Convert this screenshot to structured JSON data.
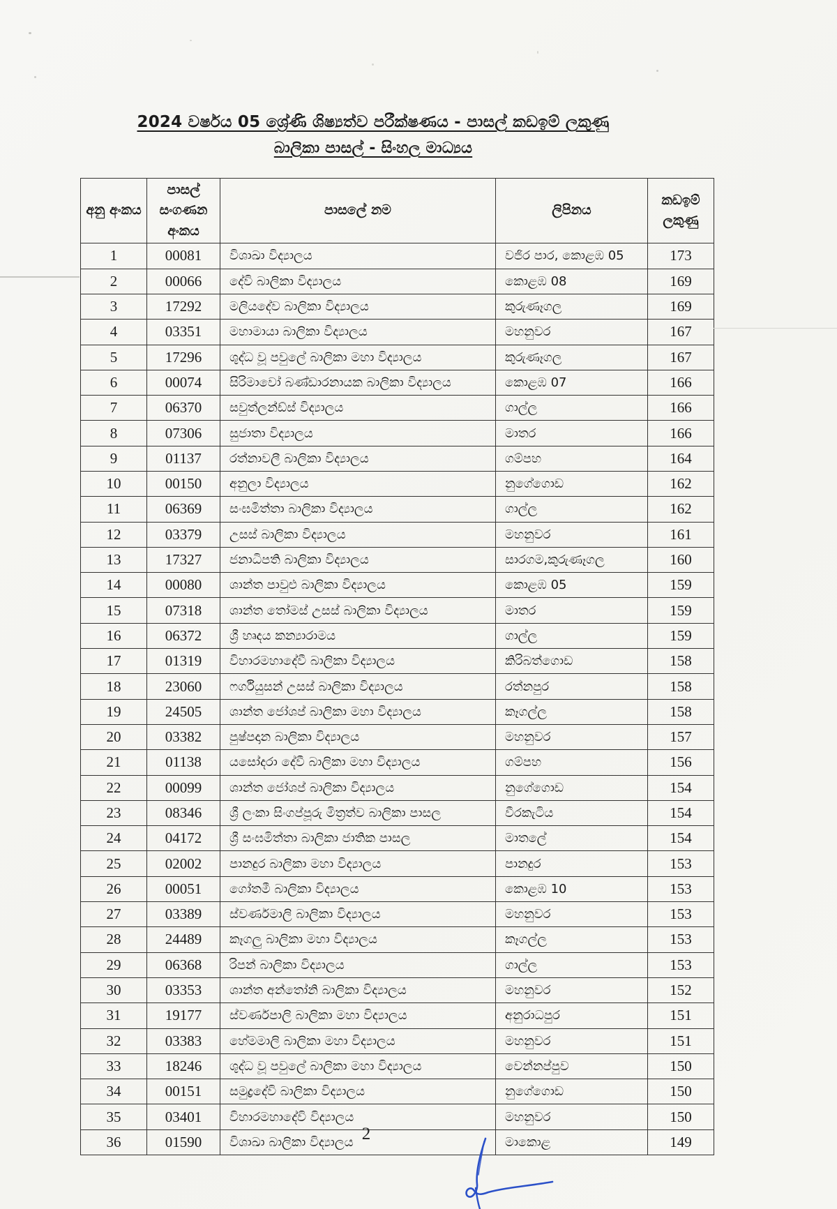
{
  "page": {
    "title_line1": "2024 වර්ෂය 05 ශ්‍රේණි ශිෂ්‍යත්ව පරීක්ෂණය - පාසල් කඩඉම් ලකුණු",
    "title_line2": "බාලිකා පාසල් - සිංහල මාධ්‍යය",
    "page_number": "2",
    "signature_icon": "handwritten-signature-blue-ink"
  },
  "table": {
    "headers": {
      "serial": "අනු අංකය",
      "census": "පාසල් සංගණන අංකය",
      "school": "පාසලේ නම",
      "address": "ලිපිනය",
      "marks": "කඩඉම් ලකුණු"
    },
    "rows": [
      [
        "1",
        "00081",
        "විශාඛා විද්‍යාලය",
        "වජිර පාර, කොළඹ 05",
        "173"
      ],
      [
        "2",
        "00066",
        "දේවි බාලිකා විද්‍යාලය",
        "කොළඹ 08",
        "169"
      ],
      [
        "3",
        "17292",
        "මලියදේව බාලිකා විද්‍යාලය",
        "කුරුණෑගල",
        "169"
      ],
      [
        "4",
        "03351",
        "මහාමායා බාලිකා විද්‍යාලය",
        "මහනුවර",
        "167"
      ],
      [
        "5",
        "17296",
        "ශුද්ධ වූ පවුලේ බාලිකා මහා විද්‍යාලය",
        "කුරුණෑගල",
        "167"
      ],
      [
        "6",
        "00074",
        "සිරිමාවෝ බණ්ඩාරනායක බාලිකා විද්‍යාලය",
        "කොළඹ 07",
        "166"
      ],
      [
        "7",
        "06370",
        "සවුත්ලන්ඩ්ස් විද්‍යාලය",
        "ගාල්ල",
        "166"
      ],
      [
        "8",
        "07306",
        "සුජාතා විද්‍යාලය",
        "මාතර",
        "166"
      ],
      [
        "9",
        "01137",
        "රත්නාවලී බාලිකා විද්‍යාලය",
        "ගම්පහ",
        "164"
      ],
      [
        "10",
        "00150",
        "අනුලා විද්‍යාලය",
        "නුගේගොඩ",
        "162"
      ],
      [
        "11",
        "06369",
        "සංඝමිත්තා බාලිකා විද්‍යාලය",
        "ගාල්ල",
        "162"
      ],
      [
        "12",
        "03379",
        "උසස් බාලිකා විද්‍යාලය",
        "මහනුවර",
        "161"
      ],
      [
        "13",
        "17327",
        "ජනාධිපති බාලිකා විද්‍යාලය",
        "සාරගම,කුරුණෑගල",
        "160"
      ],
      [
        "14",
        "00080",
        "ශාන්ත පාවුළු බාලිකා විද්‍යාලය",
        "කොළඹ 05",
        "159"
      ],
      [
        "15",
        "07318",
        "ශාන්ත තෝමස් උසස් බාලිකා විද්‍යාලය",
        "මාතර",
        "159"
      ],
      [
        "16",
        "06372",
        "ශ්‍රී හෘදය කන්‍යාරාමය",
        "ගාල්ල",
        "159"
      ],
      [
        "17",
        "01319",
        "විහාරමහාදේවී බාලිකා විද්‍යාලය",
        "කිරිබත්ගොඩ",
        "158"
      ],
      [
        "18",
        "23060",
        "ෆර්ගියුසන් උසස් බාලිකා විද්‍යාලය",
        "රත්නපුර",
        "158"
      ],
      [
        "19",
        "24505",
        "ශාන්ත ජෝශප් බාලිකා මහා විද්‍යාලය",
        "කෑගල්ල",
        "158"
      ],
      [
        "20",
        "03382",
        "පුෂ්පදාන බාලිකා විද්‍යාලය",
        "මහනුවර",
        "157"
      ],
      [
        "21",
        "01138",
        "යසෝදරා දේවී බාලිකා මහා විද්‍යාලය",
        "ගම්පහ",
        "156"
      ],
      [
        "22",
        "00099",
        "ශාන්ත ජෝශප් බාලිකා විද්‍යාලය",
        "නුගේගොඩ",
        "154"
      ],
      [
        "23",
        "08346",
        "ශ්‍රී ලංකා සිංගප්පූරු මිත්‍රත්ව බාලිකා පාසල",
        "වීරකැටිය",
        "154"
      ],
      [
        "24",
        "04172",
        "ශ්‍රී සංඝමිත්තා බාලිකා ජාතික පාසල",
        "මාතලේ",
        "154"
      ],
      [
        "25",
        "02002",
        "පානදුර බාලිකා මහා විද්‍යාලය",
        "පානදුර",
        "153"
      ],
      [
        "26",
        "00051",
        "ගෝතමී බාලිකා විද්‍යාලය",
        "කොළඹ 10",
        "153"
      ],
      [
        "27",
        "03389",
        "ස්වර්ණමාලි බාලිකා විද්‍යාලය",
        "මහනුවර",
        "153"
      ],
      [
        "28",
        "24489",
        "කෑගලු බාලිකා මහා විද්‍යාලය",
        "කෑගල්ල",
        "153"
      ],
      [
        "29",
        "06368",
        "රිපන් බාලිකා විද්‍යාලය",
        "ගාල්ල",
        "153"
      ],
      [
        "30",
        "03353",
        "ශාන්ත අන්තෝනි බාලිකා විද්‍යාලය",
        "මහනුවර",
        "152"
      ],
      [
        "31",
        "19177",
        "ස්වර්ණපාලි බාලිකා මහා විද්‍යාලය",
        "අනුරාධපුර",
        "151"
      ],
      [
        "32",
        "03383",
        "හේමමාලි බාලිකා මහා විද්‍යාලය",
        "මහනුවර",
        "151"
      ],
      [
        "33",
        "18246",
        "ශුද්ධ වූ පවුලේ බාලිකා මහා විද්‍යාලය",
        "වෙන්නප්පුව",
        "150"
      ],
      [
        "34",
        "00151",
        "සමුද්‍රදේවි බාලිකා විද්‍යාලය",
        "නුගේගොඩ",
        "150"
      ],
      [
        "35",
        "03401",
        "විහාරමහාදේවි විද්‍යාලය",
        "මහනුවර",
        "150"
      ],
      [
        "36",
        "01590",
        "විශාඛා බාලිකා විද්‍යාලය",
        "මාකොළ",
        "149"
      ]
    ]
  }
}
